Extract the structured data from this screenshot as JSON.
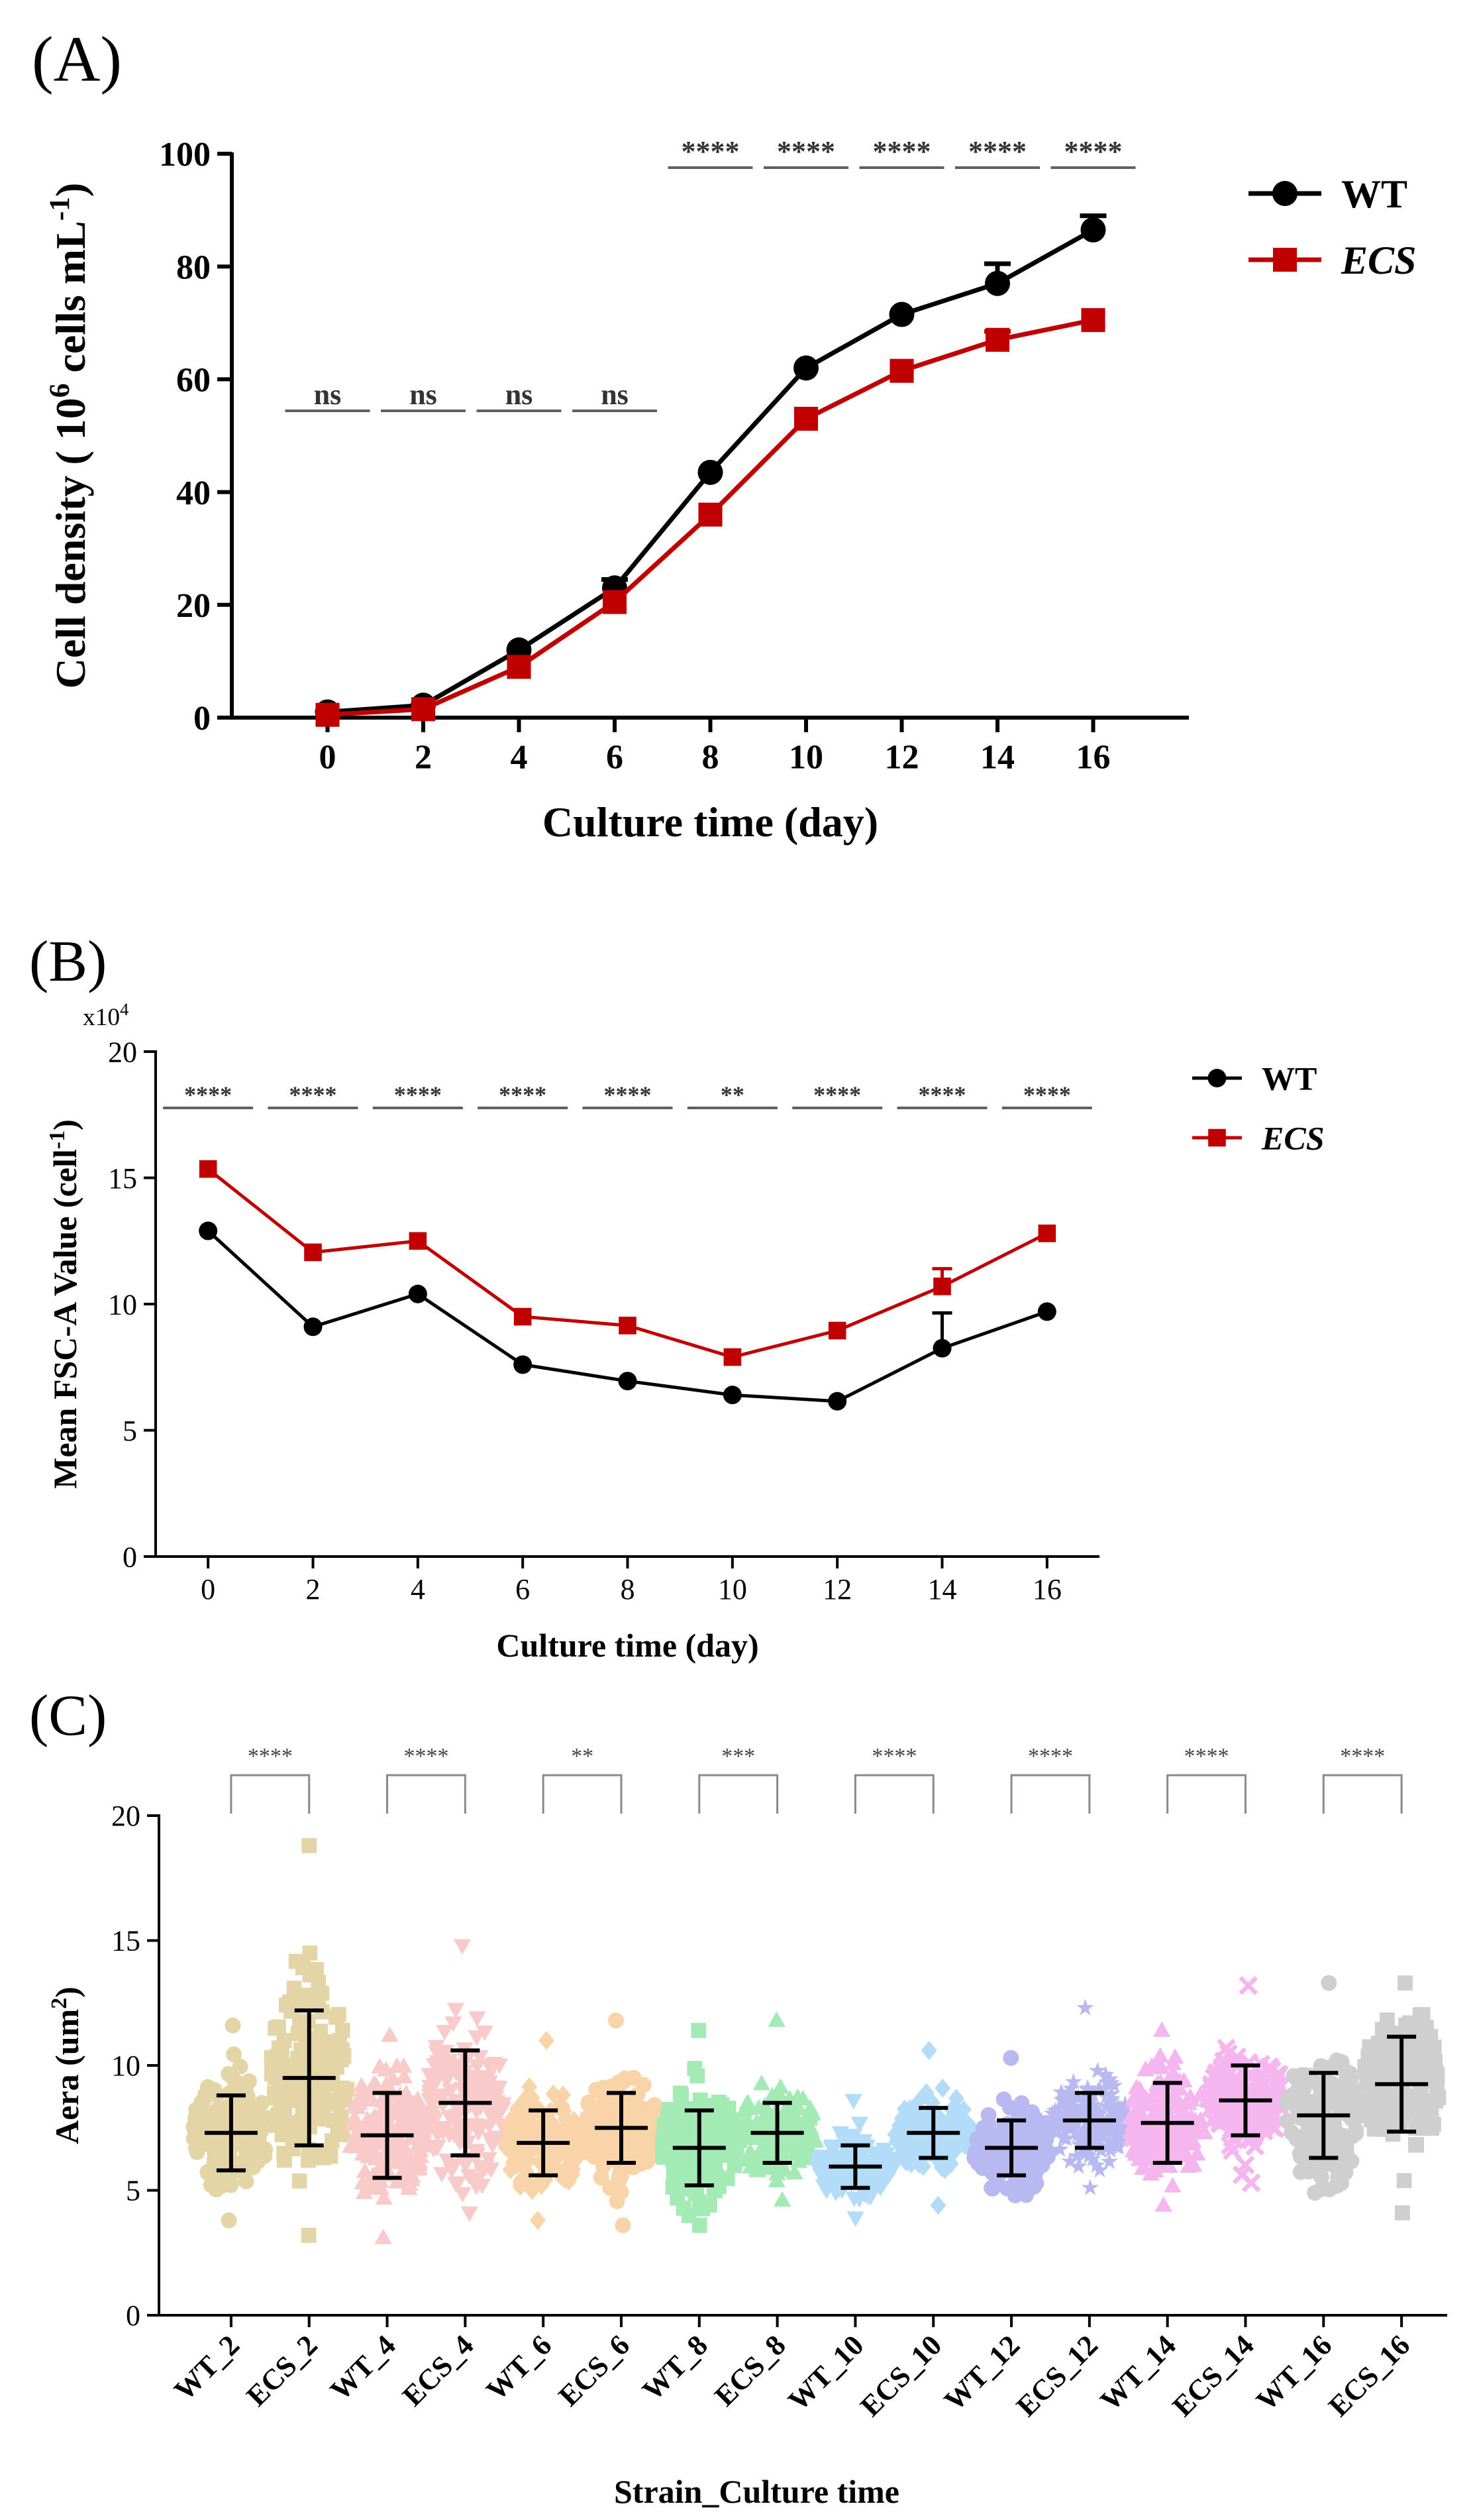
{
  "colors": {
    "wt": "#000000",
    "ecs": "#c00000",
    "sig": "#606060",
    "axis": "#000000"
  },
  "panels": {
    "a": {
      "label": "(A)"
    },
    "b": {
      "label": "(B)"
    },
    "c": {
      "label": "(C)"
    }
  },
  "chart_data": [
    {
      "id": "A",
      "type": "line",
      "xlabel": "Culture time (day)",
      "ylabel_parts": [
        "Cell density ( 10",
        "6",
        " cells mL",
        "-1",
        ")"
      ],
      "x": [
        0,
        2,
        4,
        6,
        8,
        10,
        12,
        14,
        16
      ],
      "xlim": [
        -2,
        18
      ],
      "ylim": [
        0,
        100
      ],
      "yticks": [
        0,
        20,
        40,
        60,
        80,
        100
      ],
      "legend_position": "top-right",
      "series": [
        {
          "name": "WT",
          "italic": false,
          "color": "#000000",
          "marker": "circle",
          "values": [
            1,
            2.2,
            12,
            23,
            43.5,
            62,
            71.5,
            77,
            86.5
          ],
          "errors": [
            0,
            0,
            0,
            1.5,
            0,
            0,
            0,
            3.5,
            2.5
          ]
        },
        {
          "name": "ECS",
          "italic": true,
          "color": "#c00000",
          "marker": "square",
          "values": [
            0.5,
            1.5,
            9,
            20.5,
            36,
            53,
            61.5,
            67,
            70.5
          ],
          "errors": [
            0,
            0,
            0,
            0,
            0,
            0,
            0,
            1.5,
            0
          ]
        }
      ],
      "significance": [
        {
          "x": 0,
          "label": "ns"
        },
        {
          "x": 2,
          "label": "ns"
        },
        {
          "x": 4,
          "label": "ns"
        },
        {
          "x": 6,
          "label": "ns"
        },
        {
          "x": 8,
          "label": "****"
        },
        {
          "x": 10,
          "label": "****"
        },
        {
          "x": 12,
          "label": "****"
        },
        {
          "x": 14,
          "label": "****"
        },
        {
          "x": 16,
          "label": "****"
        }
      ]
    },
    {
      "id": "B",
      "type": "line",
      "xlabel": "Culture time (day)",
      "ylabel_parts": [
        "Mean FSC-A Value (cell",
        "-1",
        ")"
      ],
      "y_multiplier": "x10",
      "y_multiplier_exp": "4",
      "x": [
        0,
        2,
        4,
        6,
        8,
        10,
        12,
        14,
        16
      ],
      "xlim": [
        -1,
        17
      ],
      "ylim": [
        0,
        20
      ],
      "yticks": [
        0,
        5,
        10,
        15,
        20
      ],
      "legend_position": "top-right",
      "series": [
        {
          "name": "WT",
          "italic": false,
          "color": "#000000",
          "marker": "circle",
          "values": [
            12.9,
            9.1,
            10.4,
            7.6,
            6.95,
            6.4,
            6.15,
            8.25,
            9.7
          ],
          "errors": [
            0,
            0,
            0,
            0,
            0,
            0,
            0,
            1.4,
            0
          ]
        },
        {
          "name": "ECS",
          "italic": true,
          "color": "#c00000",
          "marker": "square",
          "values": [
            15.35,
            12.05,
            12.5,
            9.5,
            9.15,
            7.9,
            8.95,
            10.7,
            12.8
          ],
          "errors": [
            0,
            0,
            0,
            0,
            0,
            0,
            0,
            0.7,
            0
          ]
        }
      ],
      "significance": [
        {
          "x": 0,
          "label": "****"
        },
        {
          "x": 2,
          "label": "****"
        },
        {
          "x": 4,
          "label": "****"
        },
        {
          "x": 6,
          "label": "****"
        },
        {
          "x": 8,
          "label": "****"
        },
        {
          "x": 10,
          "label": "**"
        },
        {
          "x": 12,
          "label": "****"
        },
        {
          "x": 14,
          "label": "****"
        },
        {
          "x": 16,
          "label": "****"
        }
      ]
    },
    {
      "id": "C",
      "type": "scatter",
      "subtype": "dot-plot-mean-sd",
      "xlabel": "Strain_Culture time",
      "ylabel_parts": [
        "Aera (um",
        "2",
        ")"
      ],
      "ylim": [
        0,
        20
      ],
      "yticks": [
        0,
        5,
        10,
        15,
        20
      ],
      "categories": [
        "WT_2",
        "ECS_2",
        "WT_4",
        "ECS_4",
        "WT_6",
        "ECS_6",
        "WT_8",
        "ECS_8",
        "WT_10",
        "ECS_10",
        "WT_12",
        "ECS_12",
        "WT_14",
        "ECS_14",
        "WT_16",
        "ECS_16"
      ],
      "groups": [
        {
          "name": "WT_2",
          "mean": 7.3,
          "sd": 1.5,
          "min": 3.8,
          "max": 11.6,
          "color": "#e3d5a6",
          "marker": "circle"
        },
        {
          "name": "ECS_2",
          "mean": 9.5,
          "sd": 2.7,
          "min": 3.2,
          "max": 18.8,
          "color": "#e3d5a6",
          "marker": "square"
        },
        {
          "name": "WT_4",
          "mean": 7.2,
          "sd": 1.7,
          "min": 3.1,
          "max": 11.2,
          "color": "#f9caca",
          "marker": "triangle"
        },
        {
          "name": "ECS_4",
          "mean": 8.5,
          "sd": 2.1,
          "min": 4.1,
          "max": 14.8,
          "color": "#f9caca",
          "marker": "triangle-down"
        },
        {
          "name": "WT_6",
          "mean": 6.9,
          "sd": 1.3,
          "min": 3.8,
          "max": 11.0,
          "color": "#f8d4a8",
          "marker": "diamond"
        },
        {
          "name": "ECS_6",
          "mean": 7.5,
          "sd": 1.4,
          "min": 3.6,
          "max": 11.8,
          "color": "#f8d4a8",
          "marker": "circle"
        },
        {
          "name": "WT_8",
          "mean": 6.7,
          "sd": 1.5,
          "min": 3.6,
          "max": 11.4,
          "color": "#a3eab5",
          "marker": "square"
        },
        {
          "name": "ECS_8",
          "mean": 7.3,
          "sd": 1.2,
          "min": 4.6,
          "max": 11.8,
          "color": "#a3eab5",
          "marker": "triangle"
        },
        {
          "name": "WT_10",
          "mean": 5.95,
          "sd": 0.85,
          "min": 3.9,
          "max": 8.6,
          "color": "#b2dcf7",
          "marker": "triangle-down"
        },
        {
          "name": "ECS_10",
          "mean": 7.3,
          "sd": 1.0,
          "min": 4.4,
          "max": 10.6,
          "color": "#b2dcf7",
          "marker": "diamond"
        },
        {
          "name": "WT_12",
          "mean": 6.7,
          "sd": 1.1,
          "min": 4.8,
          "max": 10.3,
          "color": "#b9b9f2",
          "marker": "circle"
        },
        {
          "name": "ECS_12",
          "mean": 7.8,
          "sd": 1.1,
          "min": 5.1,
          "max": 12.3,
          "color": "#b9b9f2",
          "marker": "star"
        },
        {
          "name": "WT_14",
          "mean": 7.7,
          "sd": 1.6,
          "min": 4.4,
          "max": 11.4,
          "color": "#f5b6f0",
          "marker": "triangle"
        },
        {
          "name": "ECS_14",
          "mean": 8.6,
          "sd": 1.4,
          "min": 5.3,
          "max": 13.2,
          "color": "#f5b6f0",
          "marker": "cross"
        },
        {
          "name": "WT_16",
          "mean": 8.0,
          "sd": 1.7,
          "min": 4.9,
          "max": 13.3,
          "color": "#cfcfcf",
          "marker": "circle"
        },
        {
          "name": "ECS_16",
          "mean": 9.25,
          "sd": 1.9,
          "min": 4.1,
          "max": 13.3,
          "color": "#cfcfcf",
          "marker": "square"
        }
      ],
      "significance": [
        {
          "pair": [
            0,
            1
          ],
          "label": "****"
        },
        {
          "pair": [
            2,
            3
          ],
          "label": "****"
        },
        {
          "pair": [
            4,
            5
          ],
          "label": "**"
        },
        {
          "pair": [
            6,
            7
          ],
          "label": "***"
        },
        {
          "pair": [
            8,
            9
          ],
          "label": "****"
        },
        {
          "pair": [
            10,
            11
          ],
          "label": "****"
        },
        {
          "pair": [
            12,
            13
          ],
          "label": "****"
        },
        {
          "pair": [
            14,
            15
          ],
          "label": "****"
        }
      ]
    }
  ]
}
